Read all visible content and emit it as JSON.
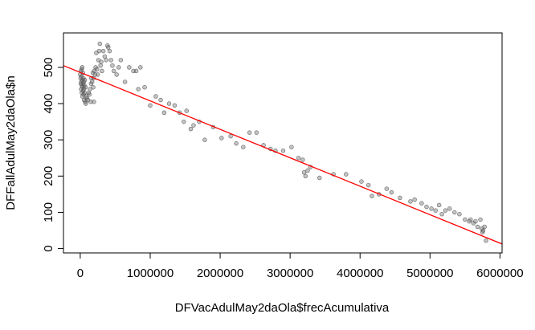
{
  "chart_data": {
    "type": "scatter",
    "title": "",
    "xlabel": "DFVacAdulMay2daOla$frecAcumulativa",
    "ylabel": "DFFallAdulMay2daOla$n",
    "xlim": [
      -240000,
      6030000
    ],
    "ylim": [
      -12,
      595
    ],
    "xticks": [
      0,
      1000000,
      2000000,
      3000000,
      4000000,
      5000000,
      6000000
    ],
    "xtick_labels": [
      "0",
      "1000000",
      "2000000",
      "3000000",
      "4000000",
      "5000000",
      "6000000"
    ],
    "yticks": [
      0,
      100,
      200,
      300,
      400,
      500
    ],
    "ytick_labels": [
      "0",
      "100",
      "200",
      "300",
      "400",
      "500"
    ],
    "grid": false,
    "point_color": "#555555",
    "fit_line_color": "#ff0000",
    "fit_line": {
      "intercept": 486,
      "slope": -7.85e-05
    },
    "points": [
      {
        "x": 0,
        "y": 480
      },
      {
        "x": 5000,
        "y": 470
      },
      {
        "x": 8000,
        "y": 455
      },
      {
        "x": 10000,
        "y": 490
      },
      {
        "x": 12000,
        "y": 440
      },
      {
        "x": 15000,
        "y": 460
      },
      {
        "x": 18000,
        "y": 475
      },
      {
        "x": 20000,
        "y": 495
      },
      {
        "x": 22000,
        "y": 430
      },
      {
        "x": 25000,
        "y": 450
      },
      {
        "x": 28000,
        "y": 500
      },
      {
        "x": 30000,
        "y": 465
      },
      {
        "x": 32000,
        "y": 420
      },
      {
        "x": 35000,
        "y": 445
      },
      {
        "x": 38000,
        "y": 485
      },
      {
        "x": 40000,
        "y": 435
      },
      {
        "x": 42000,
        "y": 455
      },
      {
        "x": 45000,
        "y": 470
      },
      {
        "x": 48000,
        "y": 425
      },
      {
        "x": 50000,
        "y": 460
      },
      {
        "x": 52000,
        "y": 440
      },
      {
        "x": 55000,
        "y": 410
      },
      {
        "x": 58000,
        "y": 450
      },
      {
        "x": 60000,
        "y": 430
      },
      {
        "x": 65000,
        "y": 465
      },
      {
        "x": 70000,
        "y": 405
      },
      {
        "x": 75000,
        "y": 445
      },
      {
        "x": 80000,
        "y": 400
      },
      {
        "x": 85000,
        "y": 420
      },
      {
        "x": 95000,
        "y": 415
      },
      {
        "x": 110000,
        "y": 410
      },
      {
        "x": 120000,
        "y": 430
      },
      {
        "x": 130000,
        "y": 425
      },
      {
        "x": 140000,
        "y": 440
      },
      {
        "x": 150000,
        "y": 405
      },
      {
        "x": 155000,
        "y": 455
      },
      {
        "x": 160000,
        "y": 470
      },
      {
        "x": 170000,
        "y": 460
      },
      {
        "x": 180000,
        "y": 485
      },
      {
        "x": 185000,
        "y": 445
      },
      {
        "x": 190000,
        "y": 470
      },
      {
        "x": 195000,
        "y": 405
      },
      {
        "x": 200000,
        "y": 490
      },
      {
        "x": 210000,
        "y": 480
      },
      {
        "x": 220000,
        "y": 500
      },
      {
        "x": 230000,
        "y": 540
      },
      {
        "x": 240000,
        "y": 495
      },
      {
        "x": 250000,
        "y": 480
      },
      {
        "x": 260000,
        "y": 520
      },
      {
        "x": 270000,
        "y": 545
      },
      {
        "x": 280000,
        "y": 565
      },
      {
        "x": 290000,
        "y": 505
      },
      {
        "x": 300000,
        "y": 515
      },
      {
        "x": 310000,
        "y": 490
      },
      {
        "x": 330000,
        "y": 545
      },
      {
        "x": 350000,
        "y": 530
      },
      {
        "x": 370000,
        "y": 520
      },
      {
        "x": 390000,
        "y": 560
      },
      {
        "x": 400000,
        "y": 555
      },
      {
        "x": 420000,
        "y": 545
      },
      {
        "x": 440000,
        "y": 520
      },
      {
        "x": 460000,
        "y": 505
      },
      {
        "x": 480000,
        "y": 490
      },
      {
        "x": 520000,
        "y": 480
      },
      {
        "x": 550000,
        "y": 500
      },
      {
        "x": 580000,
        "y": 520
      },
      {
        "x": 640000,
        "y": 460
      },
      {
        "x": 700000,
        "y": 500
      },
      {
        "x": 760000,
        "y": 490
      },
      {
        "x": 800000,
        "y": 490
      },
      {
        "x": 830000,
        "y": 440
      },
      {
        "x": 860000,
        "y": 500
      },
      {
        "x": 920000,
        "y": 445
      },
      {
        "x": 1000000,
        "y": 395
      },
      {
        "x": 1080000,
        "y": 420
      },
      {
        "x": 1150000,
        "y": 410
      },
      {
        "x": 1200000,
        "y": 375
      },
      {
        "x": 1270000,
        "y": 400
      },
      {
        "x": 1350000,
        "y": 395
      },
      {
        "x": 1420000,
        "y": 375
      },
      {
        "x": 1480000,
        "y": 350
      },
      {
        "x": 1520000,
        "y": 380
      },
      {
        "x": 1580000,
        "y": 330
      },
      {
        "x": 1620000,
        "y": 340
      },
      {
        "x": 1700000,
        "y": 350
      },
      {
        "x": 1780000,
        "y": 300
      },
      {
        "x": 1900000,
        "y": 335
      },
      {
        "x": 2020000,
        "y": 305
      },
      {
        "x": 2150000,
        "y": 310
      },
      {
        "x": 2230000,
        "y": 290
      },
      {
        "x": 2330000,
        "y": 280
      },
      {
        "x": 2420000,
        "y": 320
      },
      {
        "x": 2520000,
        "y": 320
      },
      {
        "x": 2620000,
        "y": 285
      },
      {
        "x": 2720000,
        "y": 275
      },
      {
        "x": 2790000,
        "y": 270
      },
      {
        "x": 2900000,
        "y": 270
      },
      {
        "x": 3020000,
        "y": 280
      },
      {
        "x": 3120000,
        "y": 250
      },
      {
        "x": 3180000,
        "y": 245
      },
      {
        "x": 3200000,
        "y": 210
      },
      {
        "x": 3220000,
        "y": 200
      },
      {
        "x": 3250000,
        "y": 215
      },
      {
        "x": 3290000,
        "y": 225
      },
      {
        "x": 3420000,
        "y": 195
      },
      {
        "x": 3620000,
        "y": 205
      },
      {
        "x": 3800000,
        "y": 205
      },
      {
        "x": 4020000,
        "y": 185
      },
      {
        "x": 4120000,
        "y": 175
      },
      {
        "x": 4170000,
        "y": 145
      },
      {
        "x": 4270000,
        "y": 150
      },
      {
        "x": 4380000,
        "y": 165
      },
      {
        "x": 4450000,
        "y": 155
      },
      {
        "x": 4570000,
        "y": 140
      },
      {
        "x": 4720000,
        "y": 130
      },
      {
        "x": 4780000,
        "y": 135
      },
      {
        "x": 4880000,
        "y": 125
      },
      {
        "x": 4950000,
        "y": 115
      },
      {
        "x": 5020000,
        "y": 110
      },
      {
        "x": 5080000,
        "y": 105
      },
      {
        "x": 5130000,
        "y": 120
      },
      {
        "x": 5170000,
        "y": 95
      },
      {
        "x": 5220000,
        "y": 105
      },
      {
        "x": 5280000,
        "y": 110
      },
      {
        "x": 5350000,
        "y": 100
      },
      {
        "x": 5420000,
        "y": 95
      },
      {
        "x": 5500000,
        "y": 80
      },
      {
        "x": 5560000,
        "y": 75
      },
      {
        "x": 5580000,
        "y": 80
      },
      {
        "x": 5620000,
        "y": 70
      },
      {
        "x": 5650000,
        "y": 75
      },
      {
        "x": 5680000,
        "y": 60
      },
      {
        "x": 5720000,
        "y": 80
      },
      {
        "x": 5740000,
        "y": 55
      },
      {
        "x": 5750000,
        "y": 45
      },
      {
        "x": 5760000,
        "y": 50
      },
      {
        "x": 5780000,
        "y": 60
      },
      {
        "x": 5800000,
        "y": 22
      }
    ]
  }
}
